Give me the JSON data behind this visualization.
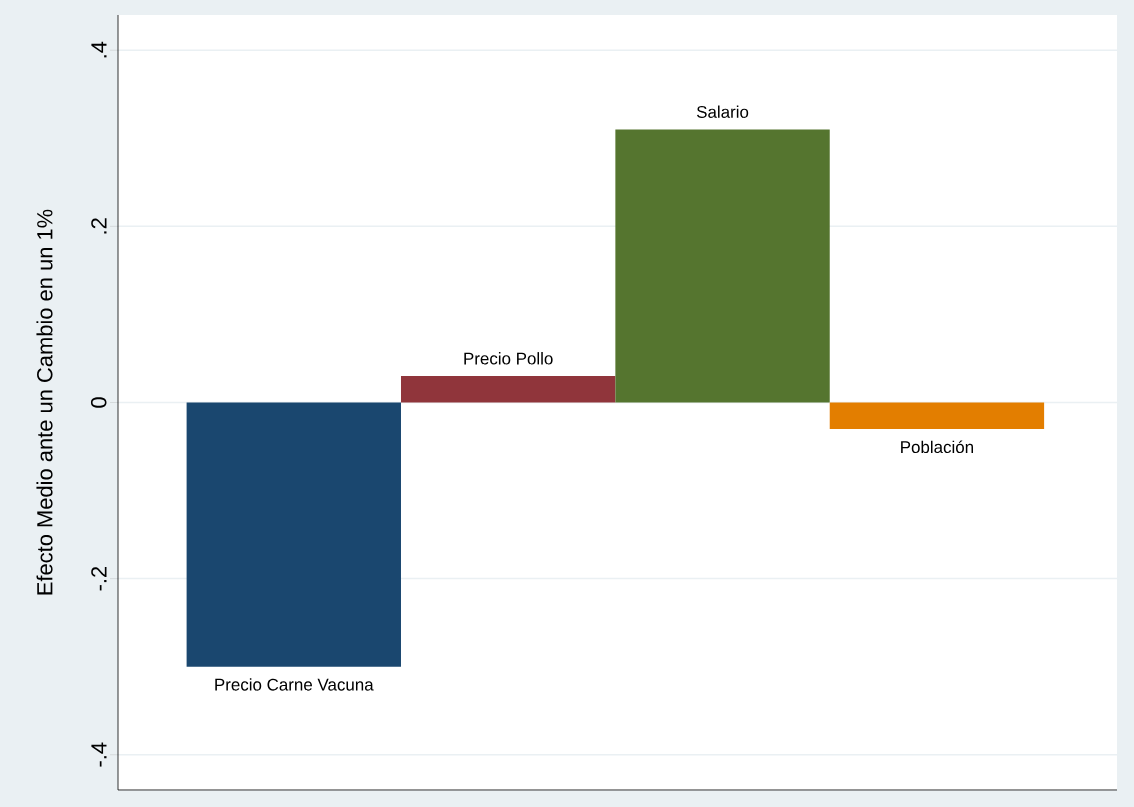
{
  "chart_data": {
    "type": "bar",
    "ylabel": "Efecto Medio ante un Cambio en un 1%",
    "categories": [
      "Precio Carne Vacuna",
      "Precio Pollo",
      "Salario",
      "Población"
    ],
    "values": [
      -0.3,
      0.03,
      0.31,
      -0.03
    ],
    "colors": [
      "#1a476f",
      "#90353b",
      "#55752f",
      "#e37e00"
    ],
    "ylim": [
      -0.44,
      0.44
    ],
    "yticks": [
      {
        "value": -0.4,
        "label": "-.4"
      },
      {
        "value": -0.2,
        "label": "-.2"
      },
      {
        "value": 0,
        "label": "0"
      },
      {
        "value": 0.2,
        "label": ".2"
      },
      {
        "value": 0.4,
        "label": ".4"
      }
    ],
    "grid": "y",
    "tick_labels": "y"
  }
}
